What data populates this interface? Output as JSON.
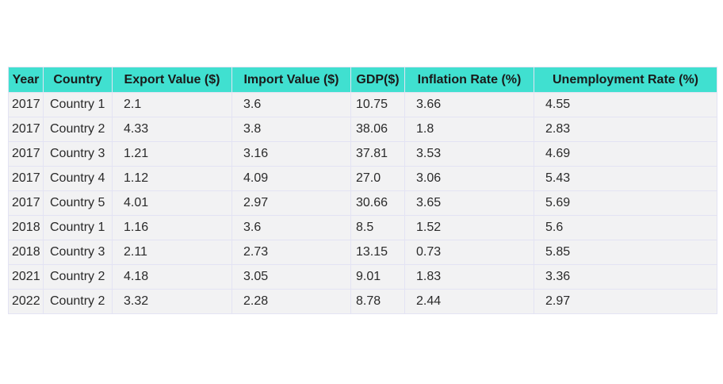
{
  "chart_data": {
    "type": "table",
    "columns": [
      "Year",
      "Country",
      "Export Value ($)",
      "Import Value ($)",
      "GDP($)",
      "Inflation Rate (%)",
      "Unemployment Rate (%)"
    ],
    "rows": [
      [
        "2017",
        "Country 1",
        "2.1",
        "3.6",
        "10.75",
        "3.66",
        "4.55"
      ],
      [
        "2017",
        "Country 2",
        "4.33",
        "3.8",
        "38.06",
        "1.8",
        "2.83"
      ],
      [
        "2017",
        "Country 3",
        "1.21",
        "3.16",
        "37.81",
        "3.53",
        "4.69"
      ],
      [
        "2017",
        "Country 4",
        "1.12",
        "4.09",
        "27.0",
        "3.06",
        "5.43"
      ],
      [
        "2017",
        "Country 5",
        "4.01",
        "2.97",
        "30.66",
        "3.65",
        "5.69"
      ],
      [
        "2018",
        "Country 1",
        "1.16",
        "3.6",
        "8.5",
        "1.52",
        "5.6"
      ],
      [
        "2018",
        "Country 3",
        "2.11",
        "2.73",
        "13.15",
        "0.73",
        "5.85"
      ],
      [
        "2021",
        "Country 2",
        "4.18",
        "3.05",
        "9.01",
        "1.83",
        "3.36"
      ],
      [
        "2022",
        "Country 2",
        "3.32",
        "2.28",
        "8.78",
        "2.44",
        "2.97"
      ]
    ],
    "header_color": "#40e0d0",
    "cell_color": "#f2f2f3",
    "border_color": "#e3e3f3"
  }
}
